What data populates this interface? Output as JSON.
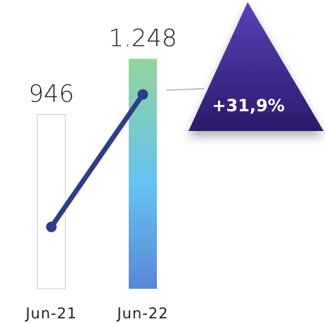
{
  "chart_data": {
    "type": "bar",
    "categories": [
      "Jun-21",
      "Jun-22"
    ],
    "values": [
      946,
      1248
    ],
    "value_labels": [
      "946",
      "1.248"
    ],
    "ylim": [
      0,
      1250
    ],
    "y2lim": [
      805,
      1330
    ],
    "line_color": "#2e3c8a",
    "annotation": "+31,9%"
  }
}
